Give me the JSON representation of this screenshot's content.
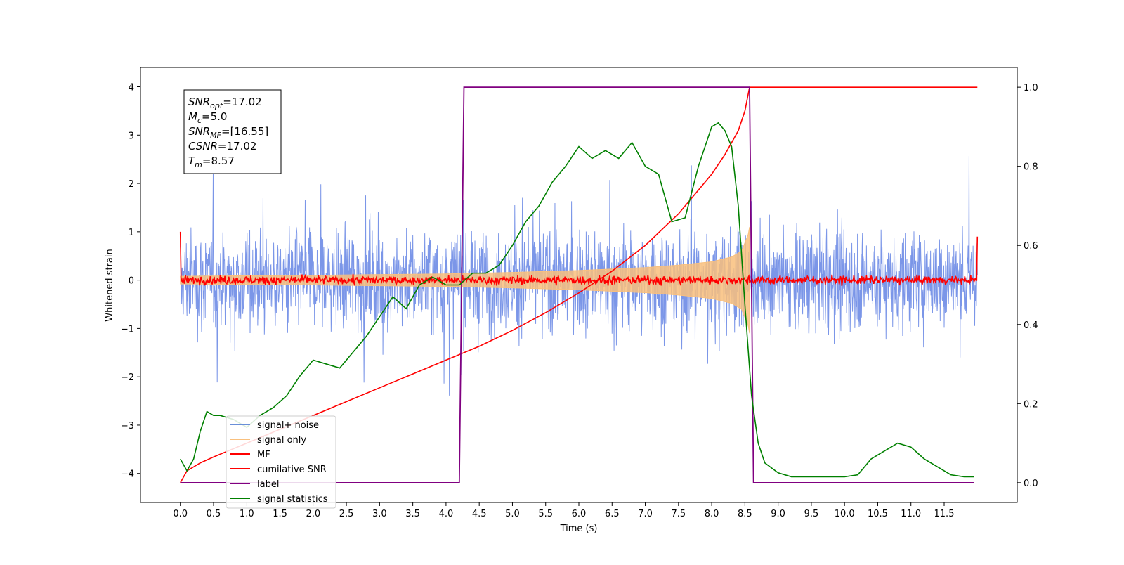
{
  "chart_data": {
    "type": "line",
    "title": "",
    "xlabel": "Time (s)",
    "ylabel": "Whitened strain",
    "xlim": [
      -0.6,
      12.6
    ],
    "ylim": [
      -4.6,
      4.4
    ],
    "y2lim": [
      -0.05,
      1.05
    ],
    "grid": false,
    "legend_placement": "lower-left",
    "x_ticks": [
      0.0,
      0.5,
      1.0,
      1.5,
      2.0,
      2.5,
      3.0,
      3.5,
      4.0,
      4.5,
      5.0,
      5.5,
      6.0,
      6.5,
      7.0,
      7.5,
      8.0,
      8.5,
      9.0,
      9.5,
      10.0,
      10.5,
      11.0,
      11.5
    ],
    "x_tick_labels": [
      "0.0",
      "0.5",
      "1.0",
      "1.5",
      "2.0",
      "2.5",
      "3.0",
      "3.5",
      "4.0",
      "4.5",
      "5.0",
      "5.5",
      "6.0",
      "6.5",
      "7.0",
      "7.5",
      "8.0",
      "8.5",
      "9.0",
      "9.5",
      "10.0",
      "10.5",
      "11.0",
      "11.5"
    ],
    "y_ticks": [
      -4,
      -3,
      -2,
      -1,
      0,
      1,
      2,
      3,
      4
    ],
    "y_tick_labels": [
      "−4",
      "−3",
      "−2",
      "−1",
      "0",
      "1",
      "2",
      "3",
      "4"
    ],
    "y2_ticks": [
      0.0,
      0.2,
      0.4,
      0.6,
      0.8,
      1.0
    ],
    "y2_tick_labels": [
      "0.0",
      "0.2",
      "0.4",
      "0.6",
      "0.8",
      "1.0"
    ],
    "info_box": [
      {
        "base": "SNR",
        "sub": "opt",
        "value": "=17.02"
      },
      {
        "base": "M",
        "sub": "c",
        "value": "=5.0"
      },
      {
        "base": "SNR",
        "sub": "MF",
        "value": "=[16.55]"
      },
      {
        "base": "CSNR",
        "sub": "",
        "value": "=17.02"
      },
      {
        "base": "T",
        "sub": "m",
        "value": "=8.57"
      }
    ],
    "series": [
      {
        "name": "signal+ noise",
        "color": "#7b96e8",
        "axis": "left",
        "description_type": "noise",
        "x_range": [
          0.0,
          12.0
        ],
        "amplitude_typical": 1.3,
        "amplitude_peak": 4.0
      },
      {
        "name": "signal only",
        "color": "#f9c07d",
        "axis": "left",
        "description_type": "chirp_envelope",
        "envelope": {
          "x": [
            0.0,
            2.0,
            4.0,
            5.0,
            6.0,
            7.0,
            7.5,
            8.0,
            8.3,
            8.45,
            8.55,
            8.57
          ],
          "y": [
            0.08,
            0.1,
            0.13,
            0.16,
            0.2,
            0.26,
            0.31,
            0.38,
            0.48,
            0.6,
            0.95,
            1.1
          ]
        }
      },
      {
        "name": "MF",
        "color": "#ff0000",
        "axis": "left",
        "description_type": "matched_filter",
        "x_range": [
          0.0,
          12.0
        ],
        "baseline": 0.0,
        "noise_amp": 0.06,
        "edge_value": 1.0
      },
      {
        "name": "cumilative SNR",
        "color": "#ff0000",
        "axis": "right",
        "x": [
          0.0,
          0.1,
          0.3,
          0.5,
          1.0,
          1.5,
          2.0,
          2.5,
          3.0,
          3.5,
          4.0,
          4.5,
          5.0,
          5.5,
          6.0,
          6.5,
          7.0,
          7.5,
          8.0,
          8.2,
          8.4,
          8.5,
          8.57,
          8.58,
          12.0
        ],
        "y": [
          0.0,
          0.03,
          0.05,
          0.065,
          0.1,
          0.135,
          0.17,
          0.205,
          0.24,
          0.275,
          0.31,
          0.345,
          0.385,
          0.43,
          0.48,
          0.535,
          0.6,
          0.68,
          0.78,
          0.83,
          0.89,
          0.94,
          1.0,
          1.0,
          1.0
        ]
      },
      {
        "name": "label",
        "color": "#800080",
        "axis": "right",
        "x": [
          0.0,
          4.2,
          4.27,
          8.57,
          8.63,
          11.95
        ],
        "y": [
          0.0,
          0.0,
          1.0,
          1.0,
          0.0,
          0.0
        ]
      },
      {
        "name": "signal statistics",
        "color": "#008000",
        "axis": "right",
        "x": [
          0.0,
          0.1,
          0.2,
          0.3,
          0.4,
          0.5,
          0.6,
          0.8,
          1.0,
          1.2,
          1.4,
          1.6,
          1.8,
          2.0,
          2.2,
          2.4,
          2.6,
          2.8,
          3.0,
          3.2,
          3.4,
          3.6,
          3.8,
          4.0,
          4.2,
          4.4,
          4.6,
          4.8,
          5.0,
          5.2,
          5.4,
          5.6,
          5.8,
          6.0,
          6.2,
          6.4,
          6.6,
          6.8,
          7.0,
          7.2,
          7.4,
          7.6,
          7.8,
          8.0,
          8.1,
          8.2,
          8.3,
          8.4,
          8.5,
          8.6,
          8.7,
          8.8,
          9.0,
          9.2,
          9.5,
          10.0,
          10.2,
          10.4,
          10.6,
          10.8,
          11.0,
          11.2,
          11.4,
          11.6,
          11.8,
          11.95
        ],
        "y": [
          0.06,
          0.03,
          0.06,
          0.13,
          0.18,
          0.17,
          0.17,
          0.16,
          0.14,
          0.17,
          0.19,
          0.22,
          0.27,
          0.31,
          0.3,
          0.29,
          0.33,
          0.37,
          0.42,
          0.47,
          0.44,
          0.5,
          0.52,
          0.5,
          0.5,
          0.53,
          0.53,
          0.55,
          0.6,
          0.66,
          0.7,
          0.76,
          0.8,
          0.85,
          0.82,
          0.84,
          0.82,
          0.86,
          0.8,
          0.78,
          0.66,
          0.67,
          0.8,
          0.9,
          0.91,
          0.89,
          0.85,
          0.7,
          0.45,
          0.22,
          0.1,
          0.05,
          0.025,
          0.015,
          0.015,
          0.015,
          0.02,
          0.06,
          0.08,
          0.1,
          0.09,
          0.06,
          0.04,
          0.02,
          0.015,
          0.015
        ]
      }
    ]
  }
}
